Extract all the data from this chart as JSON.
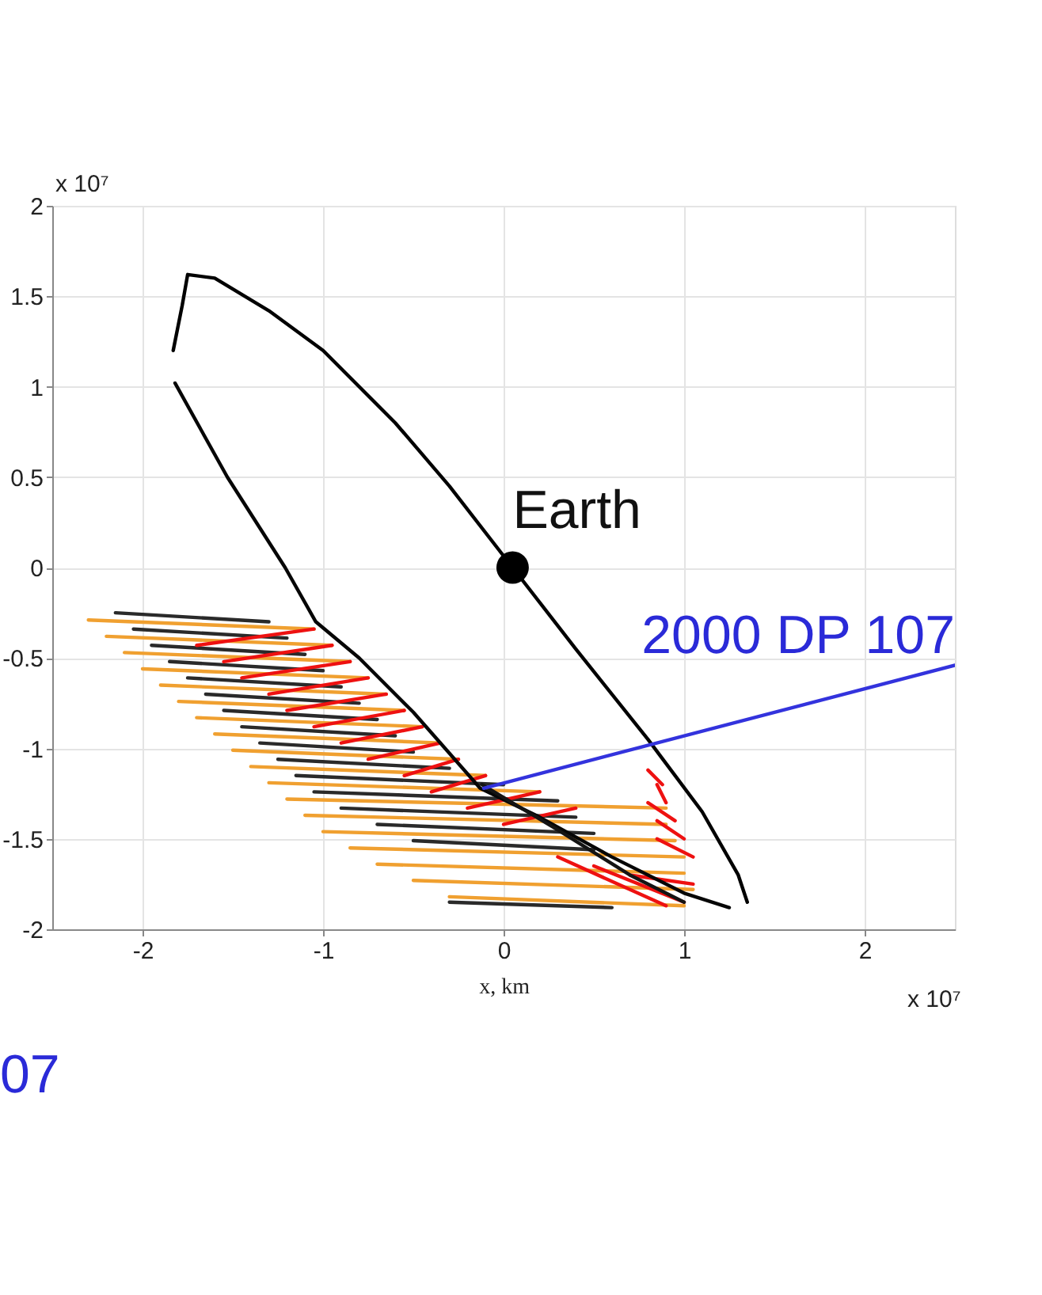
{
  "chart_data": {
    "type": "line",
    "xlabel": "x, km",
    "xlim": [
      -2.5,
      2.5
    ],
    "xticks": [
      -2,
      -1,
      0,
      1,
      2
    ],
    "ylim": [
      -2,
      2
    ],
    "yticks": [
      2,
      1.5,
      1,
      0.5,
      0,
      -0.5,
      -1,
      -1.5,
      -2
    ],
    "grid": true,
    "line_style": "solid",
    "annotations": [
      "x 10⁷",
      "x 10⁷",
      {
        "text": "Earth",
        "x": 0.05,
        "y": 0
      },
      {
        "text": "2000 DP 107",
        "x": 2.5,
        "y": -0.55
      },
      "07"
    ],
    "series": [
      {
        "color": "#f0a030",
        "x": [
          -2.3,
          -1.05,
          null,
          -2.2,
          -0.95,
          null,
          -2.1,
          -0.85,
          null,
          -2.0,
          -0.75,
          null,
          -1.9,
          -0.65,
          null,
          -1.8,
          -0.55,
          null,
          -1.7,
          -0.45,
          null,
          -1.6,
          -0.35,
          null,
          -1.5,
          -0.25,
          null,
          -1.4,
          -0.1,
          null,
          -1.3,
          0.2,
          null,
          -1.2,
          0.9,
          null,
          -1.1,
          0.9,
          null,
          -1.0,
          0.95,
          null,
          -0.85,
          1.0,
          null,
          -0.7,
          1.0,
          null,
          -0.5,
          1.05,
          null,
          -0.3,
          1.0
        ],
        "values": [
          -0.29,
          -0.34,
          null,
          -0.38,
          -0.43,
          null,
          -0.47,
          -0.52,
          null,
          -0.56,
          -0.61,
          null,
          -0.65,
          -0.7,
          null,
          -0.74,
          -0.79,
          null,
          -0.83,
          -0.88,
          null,
          -0.92,
          -0.97,
          null,
          -1.01,
          -1.06,
          null,
          -1.1,
          -1.15,
          null,
          -1.19,
          -1.24,
          null,
          -1.28,
          -1.33,
          null,
          -1.37,
          -1.42,
          null,
          -1.46,
          -1.51,
          null,
          -1.55,
          -1.6,
          null,
          -1.64,
          -1.69,
          null,
          -1.73,
          -1.78,
          null,
          -1.82,
          -1.87
        ]
      },
      {
        "color": "#2a2a2a",
        "x": [
          -2.15,
          -1.3,
          null,
          -2.05,
          -1.2,
          null,
          -1.95,
          -1.1,
          null,
          -1.85,
          -1.0,
          null,
          -1.75,
          -0.9,
          null,
          -1.65,
          -0.8,
          null,
          -1.55,
          -0.7,
          null,
          -1.45,
          -0.6,
          null,
          -1.35,
          -0.5,
          null,
          -1.25,
          -0.3,
          null,
          -1.15,
          0.0,
          null,
          -1.05,
          0.3,
          null,
          -0.9,
          0.4,
          null,
          -0.7,
          0.5,
          null,
          -0.5,
          0.5,
          null,
          -0.3,
          0.6
        ],
        "values": [
          -0.25,
          -0.3,
          null,
          -0.34,
          -0.39,
          null,
          -0.43,
          -0.48,
          null,
          -0.52,
          -0.57,
          null,
          -0.61,
          -0.66,
          null,
          -0.7,
          -0.75,
          null,
          -0.79,
          -0.84,
          null,
          -0.88,
          -0.93,
          null,
          -0.97,
          -1.02,
          null,
          -1.06,
          -1.11,
          null,
          -1.15,
          -1.2,
          null,
          -1.24,
          -1.29,
          null,
          -1.33,
          -1.38,
          null,
          -1.42,
          -1.47,
          null,
          -1.51,
          -1.56,
          null,
          -1.85,
          -1.88
        ]
      },
      {
        "color": "#ee1111",
        "x": [
          -1.7,
          -1.05,
          null,
          -1.55,
          -0.95,
          null,
          -1.45,
          -0.85,
          null,
          -1.3,
          -0.75,
          null,
          -1.2,
          -0.65,
          null,
          -1.05,
          -0.55,
          null,
          -0.9,
          -0.45,
          null,
          -0.75,
          -0.35,
          null,
          -0.55,
          -0.25,
          null,
          -0.4,
          -0.1,
          null,
          -0.2,
          0.2,
          null,
          0.0,
          0.4,
          null,
          0.3,
          0.9,
          null,
          0.5,
          1.0,
          null,
          0.7,
          1.05,
          null,
          0.85,
          1.05,
          null,
          0.85,
          1.0,
          null,
          0.8,
          0.95,
          null,
          0.85,
          0.9,
          null,
          0.8,
          0.88
        ],
        "values": [
          -0.43,
          -0.34,
          null,
          -0.52,
          -0.43,
          null,
          -0.61,
          -0.52,
          null,
          -0.7,
          -0.61,
          null,
          -0.79,
          -0.7,
          null,
          -0.88,
          -0.79,
          null,
          -0.97,
          -0.88,
          null,
          -1.06,
          -0.97,
          null,
          -1.15,
          -1.06,
          null,
          -1.24,
          -1.15,
          null,
          -1.33,
          -1.24,
          null,
          -1.42,
          -1.33,
          null,
          -1.6,
          -1.87,
          null,
          -1.65,
          -1.85,
          null,
          -1.7,
          -1.75,
          null,
          -1.5,
          -1.6,
          null,
          -1.4,
          -1.5,
          null,
          -1.3,
          -1.4,
          null,
          -1.2,
          -1.3,
          null,
          -1.12,
          -1.2
        ]
      },
      {
        "color": "#000000",
        "x": [
          -1.83,
          -1.78,
          -1.75,
          -1.6,
          -1.3,
          -1.0,
          -0.6,
          -0.3,
          0.05,
          0.4,
          0.8,
          1.1,
          1.3,
          1.35
        ],
        "values": [
          1.2,
          1.45,
          1.62,
          1.6,
          1.42,
          1.2,
          0.8,
          0.45,
          0.0,
          -0.45,
          -0.95,
          -1.35,
          -1.7,
          -1.85
        ]
      },
      {
        "color": "#060606",
        "x": [
          -1.82,
          -1.53,
          -1.21,
          -1.04,
          -0.8,
          -0.5,
          -0.13,
          0.2,
          0.6,
          1.0,
          1.25
        ],
        "values": [
          1.02,
          0.5,
          0.0,
          -0.3,
          -0.5,
          -0.8,
          -1.22,
          -1.38,
          -1.6,
          -1.8,
          -1.88
        ]
      },
      {
        "color": "#141414",
        "x": [
          -0.12,
          0.3,
          0.7,
          1.0
        ],
        "values": [
          -1.2,
          -1.45,
          -1.7,
          -1.85
        ]
      },
      {
        "color": "#3333dd",
        "x": [
          -0.11,
          2.5
        ],
        "values": [
          -1.22,
          -0.54
        ]
      },
      {
        "type": "scatter",
        "marker": "circle",
        "color": "#000000",
        "x": [
          0.05
        ],
        "values": [
          0.0
        ]
      }
    ]
  }
}
